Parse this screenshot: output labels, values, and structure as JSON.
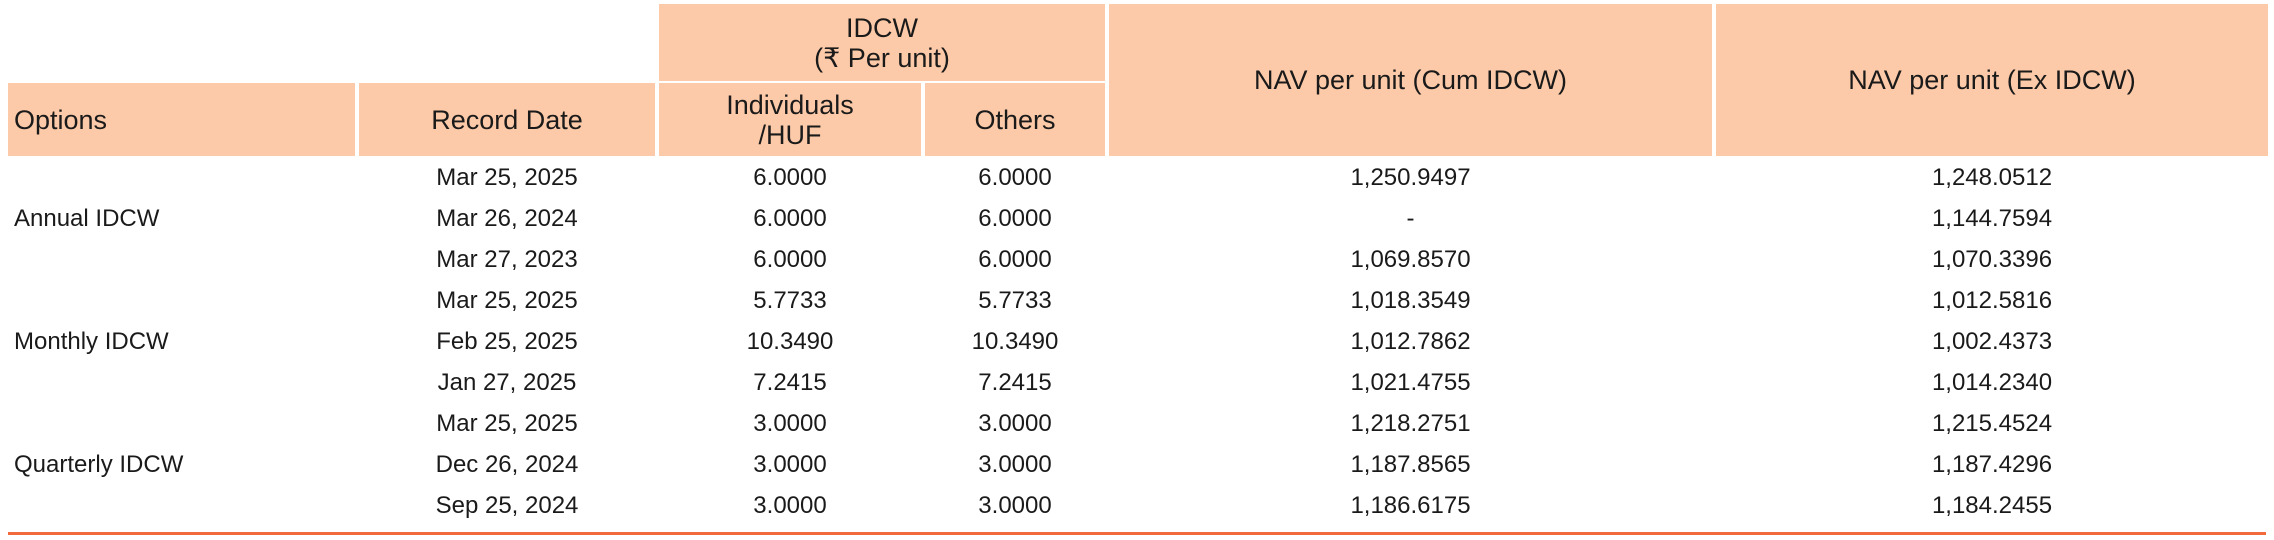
{
  "header": {
    "idcw_title": "IDCW",
    "idcw_unit": "(₹ Per unit)",
    "options": "Options",
    "record_date": "Record Date",
    "individuals_line1": "Individuals",
    "individuals_line2": "/HUF",
    "others": "Others",
    "nav_cum": "NAV per unit (Cum IDCW)",
    "nav_ex": "NAV per unit (Ex IDCW)"
  },
  "groups": [
    {
      "option": "Annual IDCW",
      "rows": [
        {
          "date": "Mar 25, 2025",
          "individuals": "6.0000",
          "others": "6.0000",
          "nav_cum": "1,250.9497",
          "nav_ex": "1,248.0512"
        },
        {
          "date": "Mar 26, 2024",
          "individuals": "6.0000",
          "others": "6.0000",
          "nav_cum": "-",
          "nav_ex": "1,144.7594"
        },
        {
          "date": "Mar 27, 2023",
          "individuals": "6.0000",
          "others": "6.0000",
          "nav_cum": "1,069.8570",
          "nav_ex": "1,070.3396"
        }
      ]
    },
    {
      "option": "Monthly IDCW",
      "rows": [
        {
          "date": "Mar 25, 2025",
          "individuals": "5.7733",
          "others": "5.7733",
          "nav_cum": "1,018.3549",
          "nav_ex": "1,012.5816"
        },
        {
          "date": "Feb 25, 2025",
          "individuals": "10.3490",
          "others": "10.3490",
          "nav_cum": "1,012.7862",
          "nav_ex": "1,002.4373"
        },
        {
          "date": "Jan 27, 2025",
          "individuals": "7.2415",
          "others": "7.2415",
          "nav_cum": "1,021.4755",
          "nav_ex": "1,014.2340"
        }
      ]
    },
    {
      "option": "Quarterly IDCW",
      "rows": [
        {
          "date": "Mar 25, 2025",
          "individuals": "3.0000",
          "others": "3.0000",
          "nav_cum": "1,218.2751",
          "nav_ex": "1,215.4524"
        },
        {
          "date": "Dec 26, 2024",
          "individuals": "3.0000",
          "others": "3.0000",
          "nav_cum": "1,187.8565",
          "nav_ex": "1,187.4296"
        },
        {
          "date": "Sep 25, 2024",
          "individuals": "3.0000",
          "others": "3.0000",
          "nav_cum": "1,186.6175",
          "nav_ex": "1,184.2455"
        }
      ]
    }
  ],
  "colors": {
    "header_bg": "#fccaa8",
    "rule": "#f26a3c"
  }
}
